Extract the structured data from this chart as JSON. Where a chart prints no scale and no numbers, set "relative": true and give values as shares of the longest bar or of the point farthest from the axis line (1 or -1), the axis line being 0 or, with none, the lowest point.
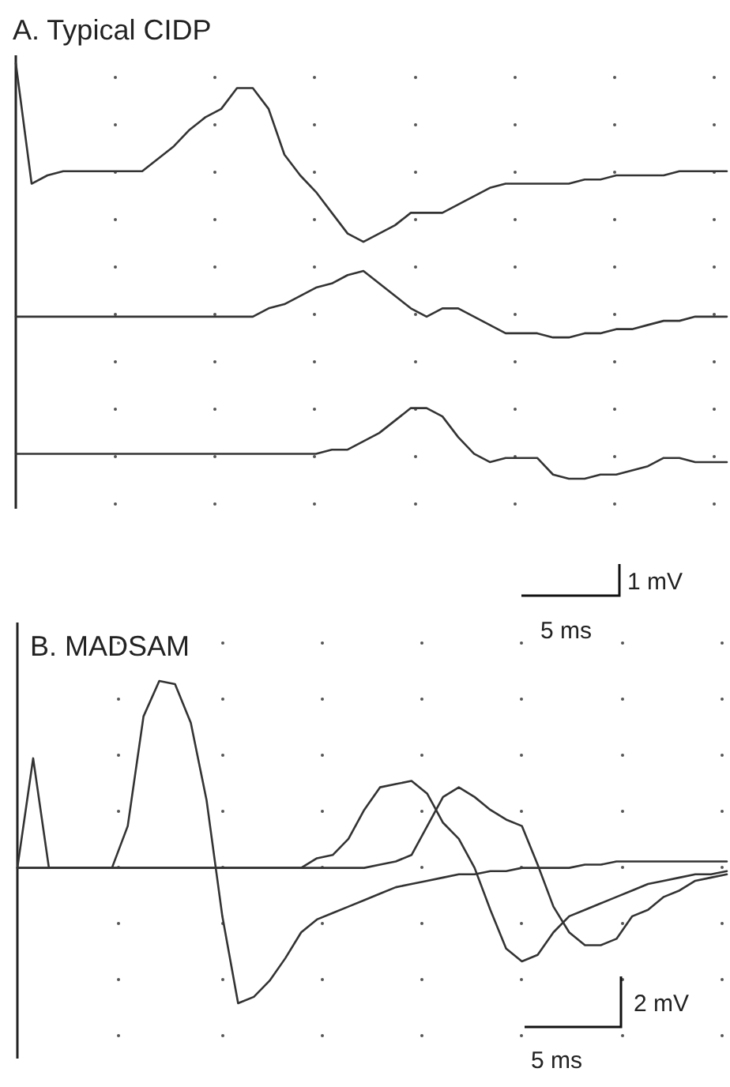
{
  "chart_data": [
    {
      "type": "line",
      "title": "A. Typical CIDP",
      "relative": true,
      "color": "#333333",
      "categories": [
        null,
        null,
        null,
        null,
        null,
        null,
        null,
        null,
        null,
        null,
        null,
        null,
        null,
        null,
        null,
        null,
        null,
        null,
        null,
        null,
        null,
        null,
        null,
        null,
        null,
        null,
        null,
        null,
        null,
        null,
        null,
        null,
        null,
        null,
        null,
        null,
        null,
        null,
        null,
        null,
        null,
        null,
        null,
        null,
        null,
        null
      ],
      "series": [
        {
          "values": [
            1.0,
            0.71,
            0.73,
            0.74,
            0.74,
            0.74,
            0.74,
            0.74,
            0.74,
            0.77,
            0.8,
            0.84,
            0.87,
            0.89,
            0.94,
            0.94,
            0.89,
            0.78,
            0.73,
            0.69,
            0.64,
            0.59,
            0.57,
            0.59,
            0.61,
            0.64,
            0.64,
            0.64,
            0.66,
            0.68,
            0.7,
            0.71,
            0.71,
            0.71,
            0.71,
            0.71,
            0.72,
            0.72,
            0.73,
            0.73,
            0.73,
            0.73,
            0.74,
            0.74,
            0.74,
            0.74
          ]
        },
        {
          "values": [
            0.39,
            0.39,
            0.39,
            0.39,
            0.39,
            0.39,
            0.39,
            0.39,
            0.39,
            0.39,
            0.39,
            0.39,
            0.39,
            0.39,
            0.39,
            0.39,
            0.41,
            0.42,
            0.44,
            0.46,
            0.47,
            0.49,
            0.5,
            0.47,
            0.44,
            0.41,
            0.39,
            0.41,
            0.41,
            0.39,
            0.37,
            0.35,
            0.35,
            0.35,
            0.34,
            0.34,
            0.35,
            0.35,
            0.36,
            0.36,
            0.37,
            0.38,
            0.38,
            0.39,
            0.39,
            0.39
          ]
        },
        {
          "values": [
            0.06,
            0.06,
            0.06,
            0.06,
            0.06,
            0.06,
            0.06,
            0.06,
            0.06,
            0.06,
            0.06,
            0.06,
            0.06,
            0.06,
            0.06,
            0.06,
            0.06,
            0.06,
            0.06,
            0.06,
            0.07,
            0.07,
            0.09,
            0.11,
            0.14,
            0.17,
            0.17,
            0.15,
            0.1,
            0.06,
            0.04,
            0.05,
            0.05,
            0.05,
            0.01,
            0.0,
            0.0,
            0.01,
            0.01,
            0.02,
            0.03,
            0.05,
            0.05,
            0.04,
            0.04,
            0.04
          ]
        }
      ],
      "annotations": [
        "1 mV",
        "5 ms"
      ]
    },
    {
      "type": "line",
      "title": "B. MADSAM",
      "relative": true,
      "color": "#333333",
      "categories": [
        null,
        null,
        null,
        null,
        null,
        null,
        null,
        null,
        null,
        null,
        null,
        null,
        null,
        null,
        null,
        null,
        null,
        null,
        null,
        null,
        null,
        null,
        null,
        null,
        null,
        null,
        null,
        null,
        null,
        null,
        null,
        null,
        null,
        null,
        null,
        null,
        null,
        null,
        null,
        null,
        null,
        null,
        null,
        null,
        null,
        null
      ],
      "series": [
        {
          "values": [
            0.42,
            0.76,
            0.42,
            0.42,
            0.42,
            0.42,
            0.42,
            0.55,
            0.89,
            1.0,
            0.99,
            0.87,
            0.63,
            0.27,
            0.0,
            0.02,
            0.07,
            0.14,
            0.22,
            0.26,
            0.28,
            0.3,
            0.32,
            0.34,
            0.36,
            0.37,
            0.38,
            0.39,
            0.4,
            0.4,
            0.41,
            0.41,
            0.42,
            0.42,
            0.42,
            0.42,
            0.43,
            0.43,
            0.44,
            0.44,
            0.44,
            0.44,
            0.44,
            0.44,
            0.44,
            0.44
          ]
        },
        {
          "values": [
            0.42,
            0.42,
            0.42,
            0.42,
            0.42,
            0.42,
            0.42,
            0.42,
            0.42,
            0.42,
            0.42,
            0.42,
            0.42,
            0.42,
            0.42,
            0.42,
            0.42,
            0.42,
            0.42,
            0.45,
            0.46,
            0.51,
            0.6,
            0.67,
            0.68,
            0.69,
            0.65,
            0.56,
            0.51,
            0.42,
            0.29,
            0.17,
            0.13,
            0.15,
            0.22,
            0.27,
            0.29,
            0.31,
            0.33,
            0.35,
            0.37,
            0.38,
            0.39,
            0.4,
            0.4,
            0.41
          ]
        },
        {
          "values": [
            0.42,
            0.42,
            0.42,
            0.42,
            0.42,
            0.42,
            0.42,
            0.42,
            0.42,
            0.42,
            0.42,
            0.42,
            0.42,
            0.42,
            0.42,
            0.42,
            0.42,
            0.42,
            0.42,
            0.42,
            0.42,
            0.42,
            0.42,
            0.43,
            0.44,
            0.46,
            0.55,
            0.64,
            0.67,
            0.64,
            0.6,
            0.57,
            0.55,
            0.43,
            0.3,
            0.22,
            0.18,
            0.18,
            0.2,
            0.27,
            0.29,
            0.33,
            0.35,
            0.38,
            0.39,
            0.4
          ]
        }
      ],
      "annotations": [
        "2 mV",
        "5 ms"
      ]
    }
  ]
}
